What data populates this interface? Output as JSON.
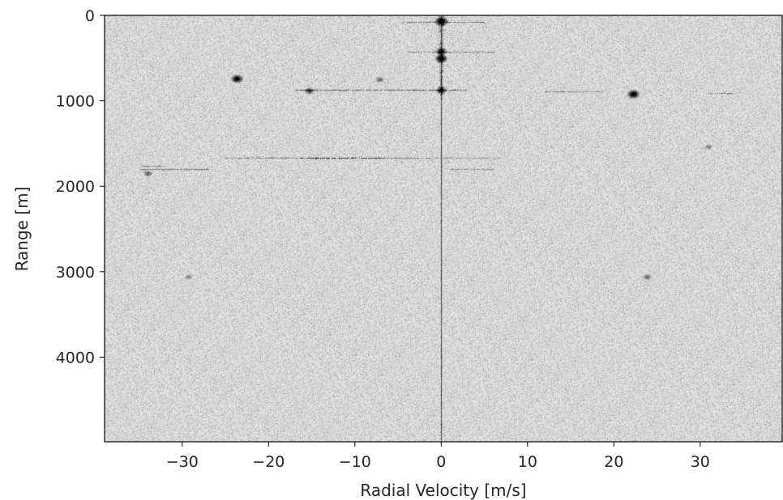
{
  "chart_data": {
    "type": "heatmap",
    "title": "",
    "xlabel": "Radial Velocity [m/s]",
    "ylabel": "Range [m]",
    "xlim": [
      -39,
      39.5
    ],
    "ylim": [
      0,
      4990
    ],
    "y_inverted": true,
    "colormap": "gray_r",
    "grid": false,
    "x_ticks": [
      -30,
      -20,
      -10,
      0,
      10,
      20,
      30
    ],
    "x_tick_labels": [
      "−30",
      "−20",
      "−10",
      "0",
      "10",
      "20",
      "30"
    ],
    "y_ticks": [
      0,
      1000,
      2000,
      3000,
      4000
    ],
    "y_tick_labels": [
      "0",
      "1000",
      "2000",
      "3000",
      "4000"
    ],
    "features": {
      "zero_velocity_line": {
        "velocity": 0,
        "range_from": 0,
        "range_to": 4990
      },
      "strong_returns": [
        {
          "velocity": 0,
          "range": 70,
          "intensity": 1.0
        },
        {
          "velocity": 0,
          "range": 500,
          "intensity": 0.95
        },
        {
          "velocity": 0,
          "range": 420,
          "intensity": 0.8
        },
        {
          "velocity": 0,
          "range": 870,
          "intensity": 0.75
        },
        {
          "velocity": -23.7,
          "range": 740,
          "intensity": 0.9
        },
        {
          "velocity": 22.2,
          "range": 915,
          "intensity": 0.95
        },
        {
          "velocity": -15.3,
          "range": 880,
          "intensity": 0.6
        },
        {
          "velocity": -34,
          "range": 1850,
          "intensity": 0.5
        },
        {
          "velocity": -7.2,
          "range": 745,
          "intensity": 0.45
        },
        {
          "velocity": 23.8,
          "range": 3060,
          "intensity": 0.45
        },
        {
          "velocity": -29.3,
          "range": 3060,
          "intensity": 0.35
        },
        {
          "velocity": 31,
          "range": 1530,
          "intensity": 0.35
        }
      ],
      "streaks": [
        {
          "range": 1670,
          "v_from": -25,
          "v_to": 7,
          "intensity": 0.85,
          "peak_v": -12
        },
        {
          "range": 875,
          "v_from": -17,
          "v_to": 3,
          "intensity": 0.55
        },
        {
          "range": 890,
          "v_from": 12,
          "v_to": 19,
          "intensity": 0.4
        },
        {
          "range": 910,
          "v_from": 31,
          "v_to": 34,
          "intensity": 0.5
        },
        {
          "range": 1800,
          "v_from": -35,
          "v_to": -27,
          "intensity": 0.5
        },
        {
          "range": 1760,
          "v_from": -35,
          "v_to": -32,
          "intensity": 0.45
        },
        {
          "range": 75,
          "v_from": -4.5,
          "v_to": 5,
          "intensity": 0.5
        },
        {
          "range": 430,
          "v_from": -4,
          "v_to": 6,
          "intensity": 0.45
        },
        {
          "range": 1800,
          "v_from": 1,
          "v_to": 6,
          "intensity": 0.35
        }
      ]
    }
  }
}
